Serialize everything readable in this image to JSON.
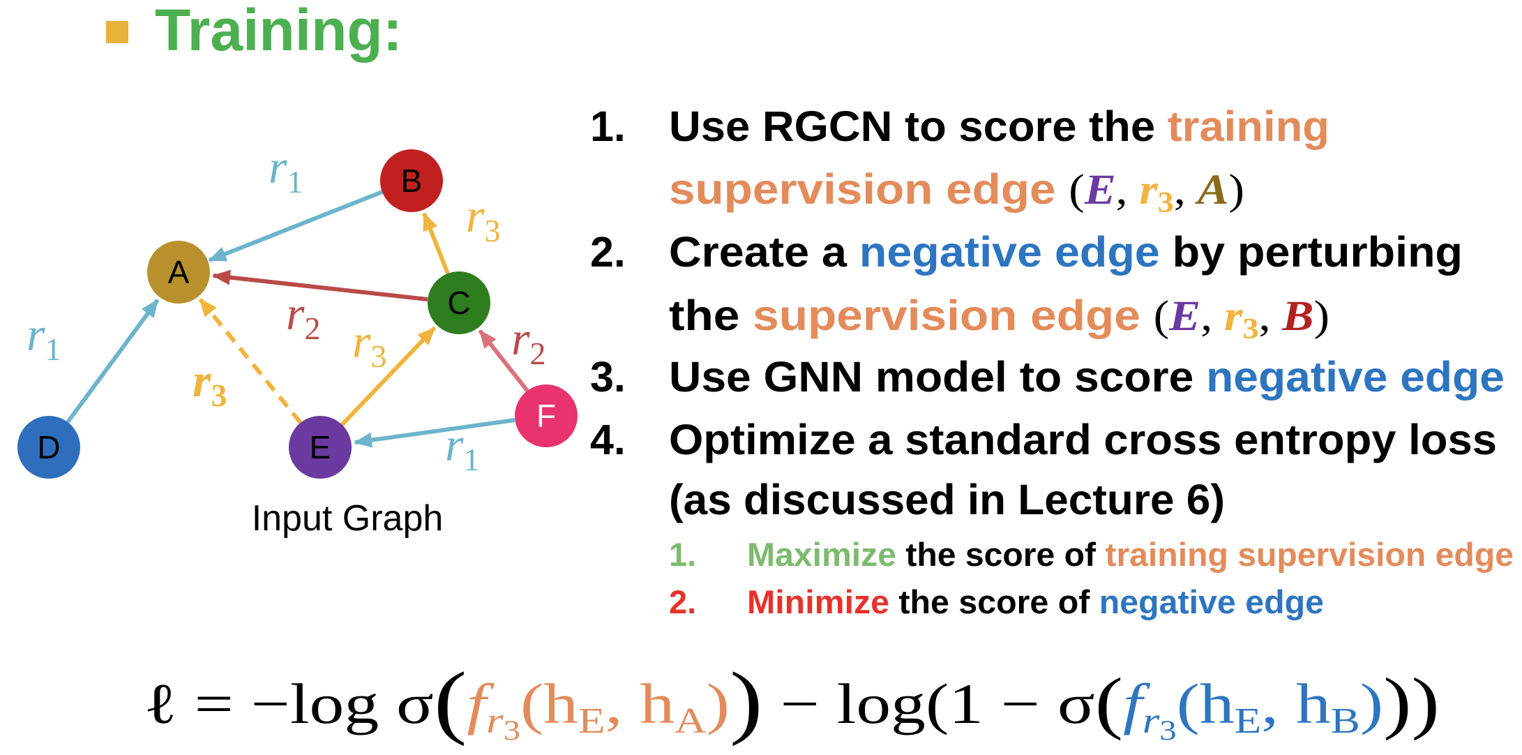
{
  "header": {
    "title": "Training:"
  },
  "graph": {
    "nodes": [
      {
        "label": "A"
      },
      {
        "label": "B"
      },
      {
        "label": "C"
      },
      {
        "label": "D"
      },
      {
        "label": "E"
      },
      {
        "label": "F"
      }
    ],
    "edge_labels": [
      {
        "symbol": "r",
        "subscript": "1"
      },
      {
        "symbol": "r",
        "subscript": "3"
      },
      {
        "symbol": "r",
        "subscript": "2"
      },
      {
        "symbol": "r",
        "subscript": "1"
      },
      {
        "symbol": "r",
        "subscript": "3"
      },
      {
        "symbol": "r",
        "subscript": "3"
      },
      {
        "symbol": "r",
        "subscript": "2"
      },
      {
        "symbol": "r",
        "subscript": "1"
      }
    ],
    "caption": "Input Graph"
  },
  "steps": [
    {
      "number": "1.",
      "lines": [
        [
          "Use RGCN to score the ",
          "training"
        ],
        [
          "supervision edge ",
          "(",
          "E",
          ", ",
          "r",
          "3",
          ", ",
          "A",
          ")"
        ]
      ]
    },
    {
      "number": "2.",
      "lines": [
        [
          "Create a ",
          "negative edge",
          " by perturbing"
        ],
        [
          "the ",
          "supervision edge ",
          "(",
          "E",
          ", ",
          "r",
          "3",
          ", ",
          "B",
          ")"
        ]
      ]
    },
    {
      "number": "3.",
      "lines": [
        [
          "Use GNN model to score ",
          "negative edge"
        ]
      ]
    },
    {
      "number": "4.",
      "lines": [
        [
          "Optimize a standard cross entropy loss"
        ],
        [
          "(as discussed in Lecture 6)"
        ]
      ],
      "substeps": [
        {
          "number": "1.",
          "segments": [
            "Maximize",
            " the score of ",
            "training supervision edge"
          ]
        },
        {
          "number": "2.",
          "segments": [
            "Minimize",
            " the score of ",
            "negative edge"
          ]
        }
      ]
    }
  ],
  "formula": [
    "ℓ = −log σ",
    "(",
    "f",
    "r",
    "3",
    "(h",
    "E",
    ", h",
    "A",
    ")",
    ")",
    " − log(1 − σ",
    "(",
    "f",
    "r",
    "3",
    "(h",
    "E",
    ", h",
    "B",
    ")",
    "))"
  ]
}
